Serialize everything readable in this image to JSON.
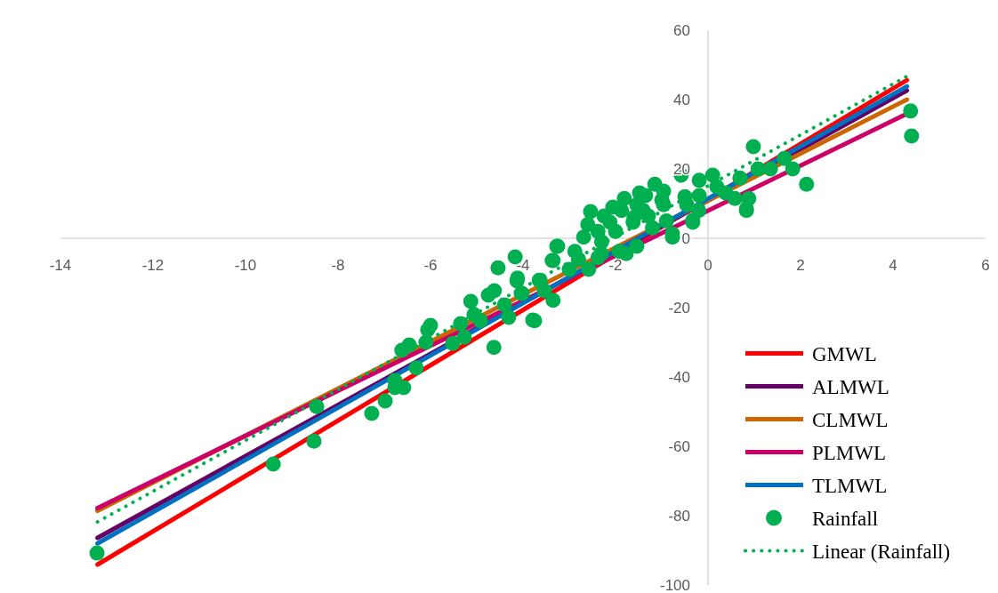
{
  "chart_data": {
    "type": "scatter",
    "xlim": [
      -14,
      6
    ],
    "ylim": [
      -100,
      60
    ],
    "xticks": [
      -14,
      -12,
      -10,
      -8,
      -6,
      -4,
      -2,
      0,
      2,
      4,
      6
    ],
    "yticks": [
      -100,
      -80,
      -60,
      -40,
      -20,
      0,
      20,
      40,
      60
    ],
    "grid": false,
    "legend": "bottom right",
    "series": [
      {
        "name": "GMWL",
        "type": "line",
        "color": "#ff0000",
        "x": [
          -13.2,
          4.3
        ],
        "values": [
          -94.1,
          45.6
        ]
      },
      {
        "name": "ALMWL",
        "type": "line",
        "color": "#660066",
        "x": [
          -13.2,
          4.3
        ],
        "values": [
          -86.4,
          42.6
        ]
      },
      {
        "name": "CLMWL",
        "type": "line",
        "color": "#cc6600",
        "x": [
          -13.2,
          4.3
        ],
        "values": [
          -78.6,
          40
        ]
      },
      {
        "name": "PLMWL",
        "type": "line",
        "color": "#cc0066",
        "x": [
          -13.2,
          4.3
        ],
        "values": [
          -77.8,
          35.9
        ]
      },
      {
        "name": "TLMWL",
        "type": "line",
        "color": "#0070c0",
        "x": [
          -13.2,
          4.3
        ],
        "values": [
          -88,
          43.8
        ]
      },
      {
        "name": "Rainfall",
        "marker": "circle",
        "color": "#00b050",
        "x": [
          -13.21,
          -9.4,
          -8.52,
          -8.46,
          -7.27,
          -6.98,
          -6.77,
          -6.58,
          -6.77,
          -6.31,
          -6.62,
          -6.46,
          -6.1,
          -6,
          -6.06,
          -5.52,
          -5.35,
          -5.27,
          -5.13,
          -5.06,
          -4.92,
          -4.63,
          -4.54,
          -4.17,
          -4.13,
          -4.75,
          -4.62,
          -4.4,
          -4.31,
          -3.75,
          -3.65,
          -4.02,
          -4.12,
          -4.04,
          -3.79,
          -3.63,
          -3.54,
          -3.35,
          -3.35,
          -3.27,
          -2.88,
          -2.69,
          -2.54,
          -2.58,
          -2.38,
          -2.25,
          -2.06,
          -1.92,
          -1.81,
          -1.77,
          -1.62,
          -1.48,
          -1.15,
          -0.96,
          -0.77,
          -0.58,
          -0.33,
          -0.19,
          -2,
          -1.29,
          -2.38,
          -1.54,
          -3.25,
          -3.37,
          -2.31,
          0.1,
          -0.77,
          -0.33,
          -0.19,
          0.38,
          0.58,
          0.83,
          0.88,
          0.98,
          1.08,
          1.35,
          1.65,
          1.83,
          2.13,
          0.69,
          0.19,
          -1.54,
          -1.87,
          -2.12,
          -1.35,
          -0.96,
          -0.46,
          4.38,
          4.4,
          0.83,
          -1.6,
          -1.2,
          -0.9,
          -2.3,
          -2.8,
          -3,
          -1,
          -0.5,
          -0.2,
          -2.6,
          -1.4
        ],
        "values": [
          -90.8,
          -65.1,
          -58.5,
          -48.5,
          -50.5,
          -46.9,
          -43.1,
          -43.1,
          -41,
          -37.4,
          -32.3,
          -30.8,
          -30,
          -25.1,
          -26.4,
          -30.3,
          -24.6,
          -28.5,
          -18.2,
          -22,
          -23.8,
          -31.5,
          -8.5,
          -5.4,
          -12.3,
          -16.4,
          -15.1,
          -19.2,
          -22.8,
          -23.8,
          -12.1,
          -15.9,
          -11.5,
          -15.9,
          -23.6,
          -12.1,
          -15.1,
          -17.9,
          -6.4,
          -2.3,
          -3.8,
          0.3,
          7.7,
          -9,
          2,
          6.4,
          9,
          -3.8,
          11.5,
          -4.4,
          4.6,
          13.1,
          15.6,
          13.6,
          1.3,
          18.2,
          4.6,
          16.7,
          2,
          6.4,
          -5.6,
          -2.3,
          -2.3,
          -6.4,
          -4.4,
          18.2,
          0.3,
          5.1,
          12.3,
          13.1,
          11.5,
          8,
          11.5,
          26.4,
          20,
          20,
          23,
          20,
          15.6,
          17.4,
          14.9,
          9.7,
          8,
          4.6,
          12.3,
          9.7,
          9.7,
          36.7,
          29.5,
          8.5,
          6,
          3,
          5,
          -1,
          -6,
          -9,
          11,
          12,
          8,
          4,
          8
        ]
      },
      {
        "name": "Linear (Rainfall)",
        "type": "line",
        "line_style": "dotted",
        "color": "#00b050",
        "x": [
          -13.2,
          4.3
        ],
        "values": [
          -81.8,
          46.7
        ]
      }
    ]
  }
}
